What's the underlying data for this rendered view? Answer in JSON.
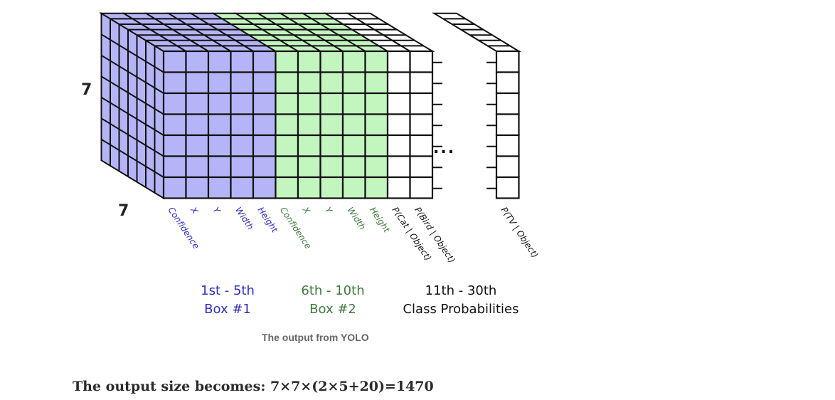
{
  "diagram": {
    "dim_label_vertical": "7",
    "dim_label_depth": "7",
    "grid_rows": 7,
    "grid_cols": 7,
    "colors": {
      "box1": "#b4b4f7",
      "box2": "#c3f5bf",
      "class": "#ffffff",
      "line": "#111111",
      "box1_text": "#2e2ec0",
      "box2_text": "#3f7a3f"
    },
    "box1_labels": [
      "Confidence",
      "X",
      "Y",
      "Width",
      "Height"
    ],
    "box2_labels": [
      "Confidence",
      "X",
      "Y",
      "Width",
      "Height"
    ],
    "class_labels": [
      "P(Cat | Object)",
      "P(Bird | Object)"
    ],
    "last_class_label": "P(TV | Object)",
    "ellipsis": "...",
    "groups": {
      "box1_range": "1st - 5th",
      "box1_name": "Box #1",
      "box2_range": "6th - 10th",
      "box2_name": "Box #2",
      "class_range": "11th - 30th",
      "class_name": "Class Probabilities"
    }
  },
  "caption": "The output from YOLO",
  "formula": "The output size becomes: 7×7×(2×5+20)=1470"
}
